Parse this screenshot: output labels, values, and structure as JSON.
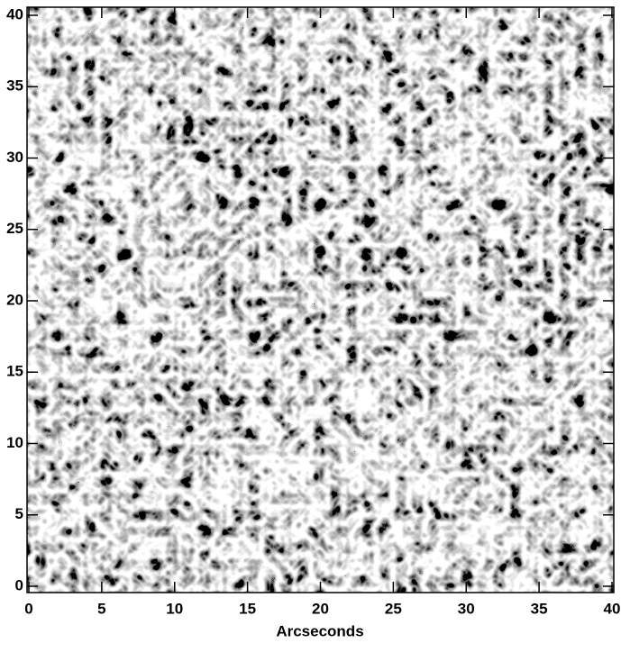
{
  "chart_data": {
    "type": "image",
    "x_label": "Arcseconds",
    "xlim": [
      0,
      40
    ],
    "ylim": [
      0,
      40
    ],
    "xticks": [
      0,
      5,
      10,
      15,
      20,
      25,
      30,
      35,
      40
    ],
    "yticks": [
      0,
      5,
      10,
      15,
      20,
      25,
      30,
      35,
      40
    ]
  }
}
